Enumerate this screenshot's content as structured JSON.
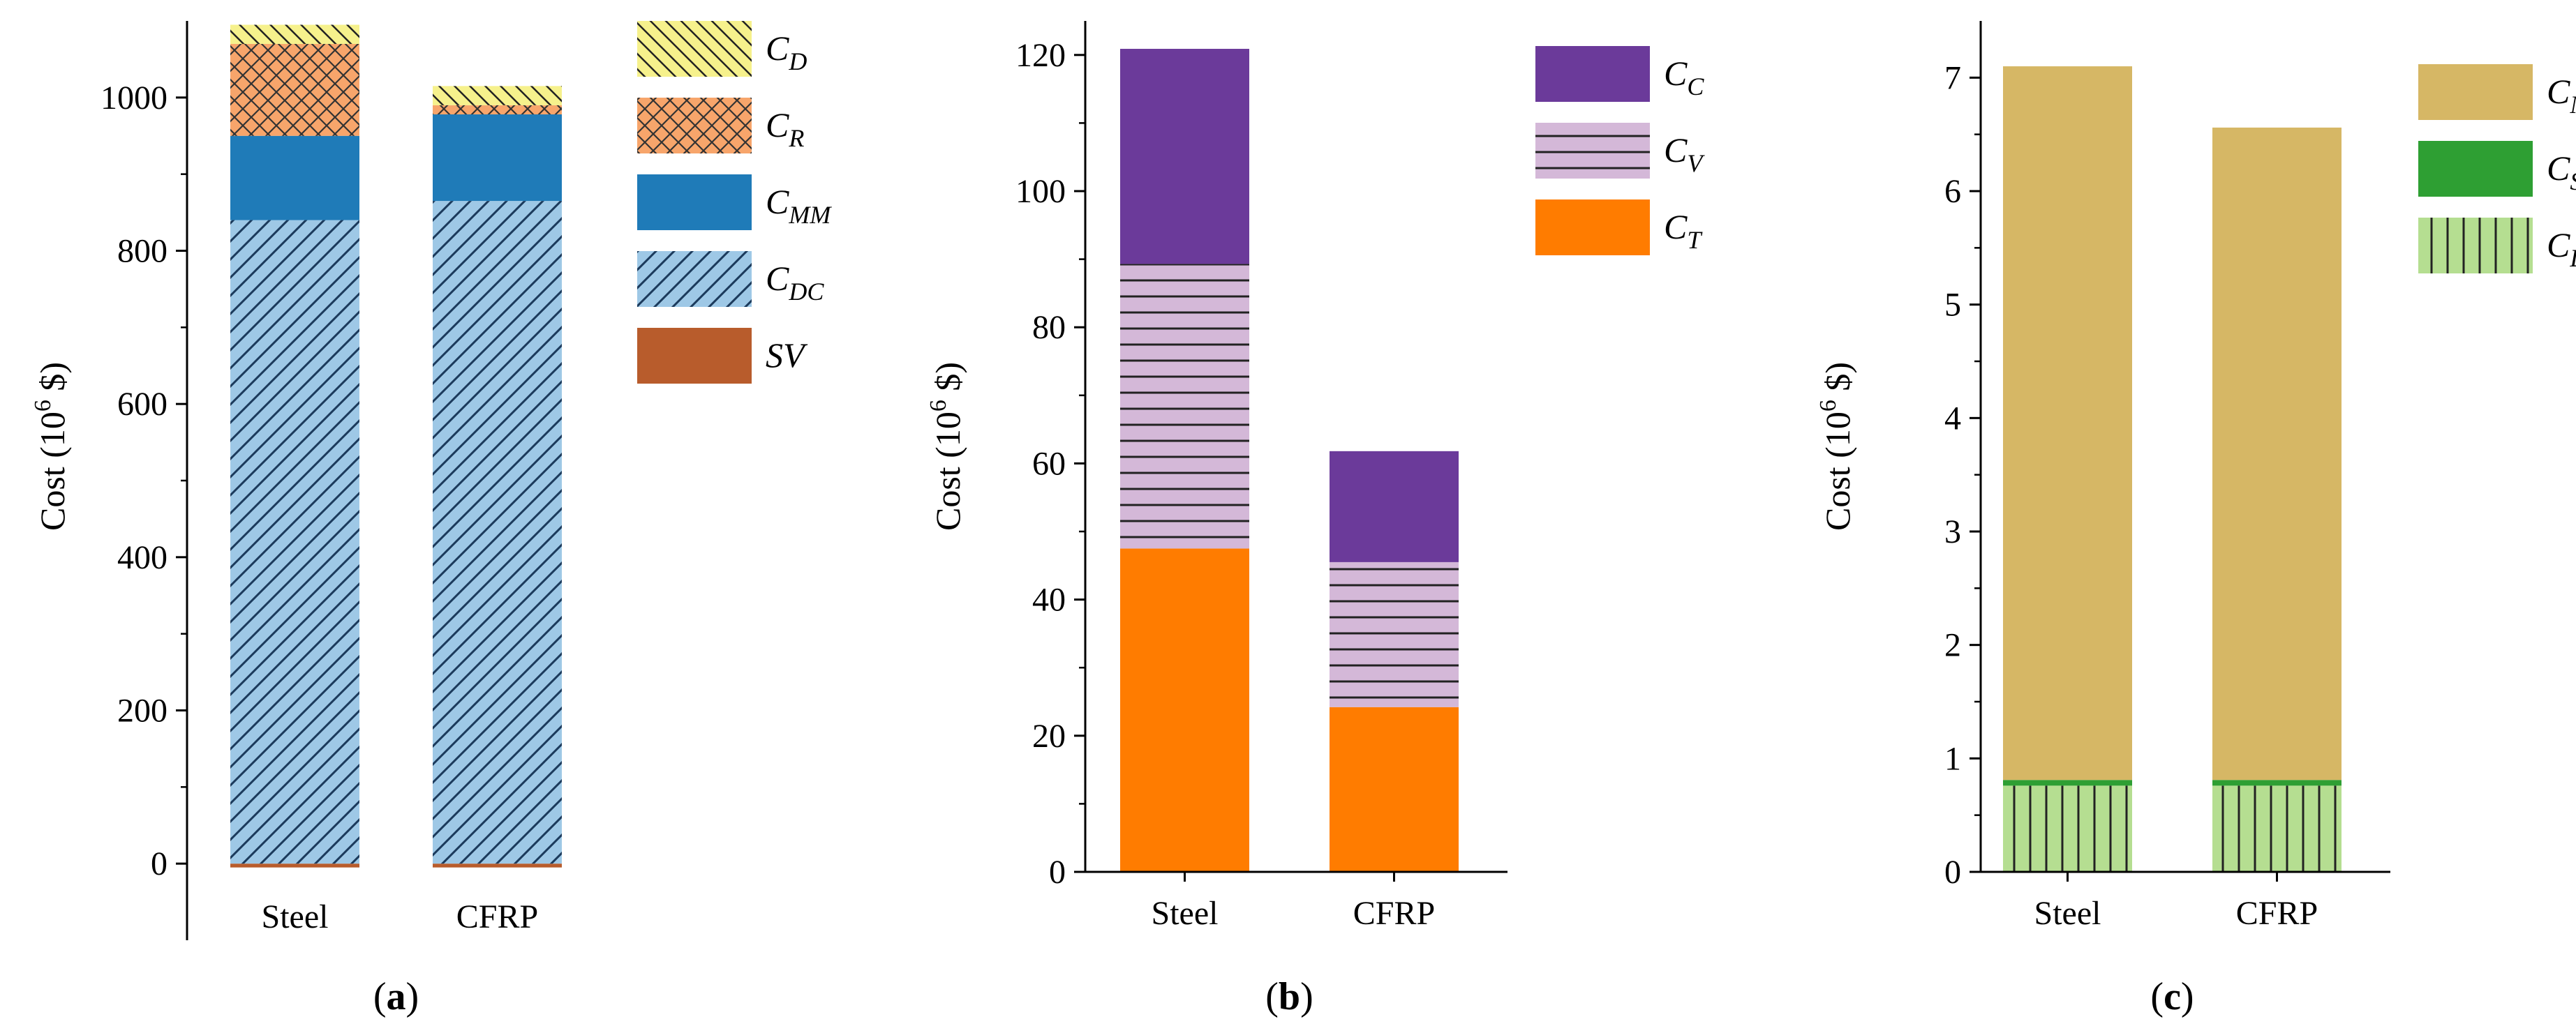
{
  "figure": {
    "background": "#ffffff"
  },
  "chart_data": [
    {
      "type": "bar",
      "stacked": true,
      "panel_label": "a",
      "categories": [
        "Steel",
        "CFRP"
      ],
      "ylabel_text": "Cost (10",
      "ylabel_sup": "6",
      "ylabel_unit": " $)",
      "ylim": [
        -100,
        1100
      ],
      "yticks": [
        0,
        200,
        400,
        600,
        800,
        1000
      ],
      "series": [
        {
          "key": "sv",
          "sym": "SV",
          "sub": "",
          "values": [
            -5,
            -5
          ],
          "color": "#b85c2c",
          "pattern": "none"
        },
        {
          "key": "cdc",
          "sym": "C",
          "sub": "DC",
          "values": [
            840,
            865
          ],
          "color": "#9ec8e6",
          "pattern": "diag"
        },
        {
          "key": "cmm",
          "sym": "C",
          "sub": "MM",
          "values": [
            110,
            113
          ],
          "color": "#1f7bb8",
          "pattern": "none"
        },
        {
          "key": "cr",
          "sym": "C",
          "sub": "R",
          "values": [
            120,
            12
          ],
          "color": "#f7a56b",
          "pattern": "cross"
        },
        {
          "key": "cd",
          "sym": "C",
          "sub": "D",
          "values": [
            25,
            25
          ],
          "color": "#f6f18c",
          "pattern": "diag2"
        }
      ]
    },
    {
      "type": "bar",
      "stacked": true,
      "panel_label": "b",
      "categories": [
        "Steel",
        "CFRP"
      ],
      "ylabel_text": "Cost (10",
      "ylabel_sup": "6",
      "ylabel_unit": " $)",
      "ylim": [
        0,
        125
      ],
      "yticks": [
        0,
        20,
        40,
        60,
        80,
        100,
        120
      ],
      "series": [
        {
          "key": "ct",
          "sym": "C",
          "sub": "T",
          "values": [
            47.5,
            24.2
          ],
          "color": "#ff7c00",
          "pattern": "none"
        },
        {
          "key": "cv",
          "sym": "C",
          "sub": "V",
          "values": [
            41.8,
            21.3
          ],
          "color": "#d4b8d8",
          "pattern": "horiz"
        },
        {
          "key": "cc",
          "sym": "C",
          "sub": "C",
          "values": [
            31.6,
            16.3
          ],
          "color": "#6b3a9a",
          "pattern": "none"
        }
      ]
    },
    {
      "type": "bar",
      "stacked": true,
      "panel_label": "c",
      "categories": [
        "Steel",
        "CFRP"
      ],
      "ylabel_text": "Cost (10",
      "ylabel_sup": "6",
      "ylabel_unit": " $)",
      "ylim": [
        0,
        7.5
      ],
      "yticks": [
        0,
        1,
        2,
        3,
        4,
        5,
        6,
        7
      ],
      "series": [
        {
          "key": "cl",
          "sym": "C",
          "sub": "L",
          "values": [
            0.76,
            0.76
          ],
          "color": "#b5de91",
          "pattern": "vert"
        },
        {
          "key": "cs",
          "sym": "C",
          "sub": "S",
          "values": [
            0.05,
            0.05
          ],
          "color": "#2e9f33",
          "pattern": "none"
        },
        {
          "key": "cn",
          "sym": "C",
          "sub": "N",
          "values": [
            6.29,
            5.75
          ],
          "color": "#d6b765",
          "pattern": "none"
        }
      ]
    }
  ]
}
